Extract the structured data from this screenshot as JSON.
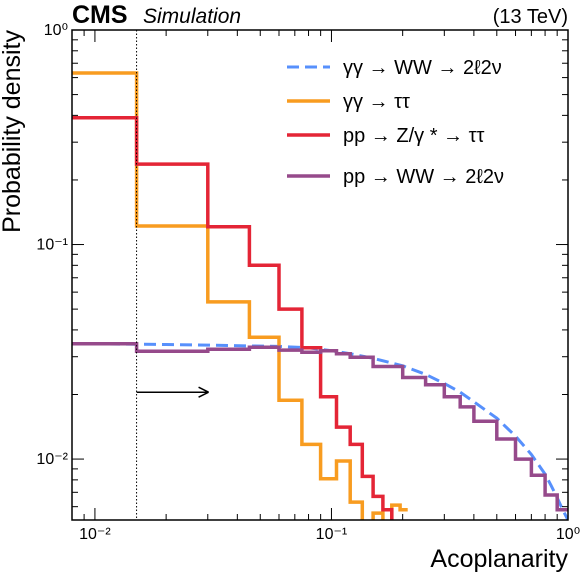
{
  "chart_data": {
    "type": "line",
    "header": {
      "experiment": "CMS",
      "status": "Simulation",
      "energy": "(13 TeV)"
    },
    "xlabel": "Acoplanarity",
    "ylabel": "Probability density",
    "x_scale": "log",
    "y_scale": "log",
    "xlim": [
      0.008,
      1.0
    ],
    "ylim": [
      0.0052,
      1.0
    ],
    "x_ticks": [
      {
        "value": 0.01,
        "label": "10⁻²"
      },
      {
        "value": 0.1,
        "label": "10⁻¹"
      },
      {
        "value": 1,
        "label": "10⁰"
      }
    ],
    "y_ticks": [
      {
        "value": 0.01,
        "label": "10⁻²"
      },
      {
        "value": 0.1,
        "label": "10⁻¹"
      },
      {
        "value": 1,
        "label": "10⁰"
      }
    ],
    "cut": {
      "value": 0.015,
      "direction": "right"
    },
    "legend_position": "top-right",
    "series": [
      {
        "name": "γγ → WW → 2ℓ2ν",
        "color": "#5790fc",
        "style": "dashed",
        "points": [
          [
            0.008,
            0.0345
          ],
          [
            0.02,
            0.0342
          ],
          [
            0.03,
            0.034
          ],
          [
            0.045,
            0.0337
          ],
          [
            0.06,
            0.0335
          ],
          [
            0.08,
            0.033
          ],
          [
            0.1,
            0.032
          ],
          [
            0.12,
            0.031
          ],
          [
            0.15,
            0.0295
          ],
          [
            0.2,
            0.0272
          ],
          [
            0.25,
            0.0248
          ],
          [
            0.3,
            0.0225
          ],
          [
            0.35,
            0.0205
          ],
          [
            0.4,
            0.0185
          ],
          [
            0.5,
            0.0155
          ],
          [
            0.6,
            0.0128
          ],
          [
            0.7,
            0.0105
          ],
          [
            0.8,
            0.0085
          ],
          [
            0.85,
            0.0075
          ],
          [
            0.9,
            0.0066
          ],
          [
            0.95,
            0.0058
          ],
          [
            1.0,
            0.0052
          ]
        ]
      },
      {
        "name": "γγ → ττ",
        "color": "#f89c20",
        "style": "solid",
        "edges": [
          0.008,
          0.015,
          0.03,
          0.045,
          0.06,
          0.075,
          0.09,
          0.105,
          0.12,
          0.135,
          0.15,
          0.165,
          0.18,
          0.195,
          0.21
        ],
        "values": [
          0.63,
          0.122,
          0.054,
          0.037,
          0.0188,
          0.0117,
          0.0081,
          0.0098,
          0.0063,
          0.0051,
          0.0056,
          0.0047,
          0.0061,
          0.0058
        ]
      },
      {
        "name": "pp → Z/γ * → ττ",
        "color": "#e42536",
        "style": "solid",
        "edges": [
          0.008,
          0.015,
          0.03,
          0.045,
          0.06,
          0.075,
          0.09,
          0.105,
          0.12,
          0.135,
          0.15,
          0.165,
          0.18,
          0.195
        ],
        "values": [
          0.39,
          0.237,
          0.121,
          0.08,
          0.05,
          0.033,
          0.0195,
          0.0141,
          0.0117,
          0.0083,
          0.0067,
          0.0058,
          0.0044
        ]
      },
      {
        "name": "pp → WW → 2ℓ2ν",
        "color": "#964a8b",
        "style": "solid",
        "edges": [
          0.008,
          0.015,
          0.03,
          0.045,
          0.06,
          0.075,
          0.09,
          0.105,
          0.12,
          0.15,
          0.2,
          0.25,
          0.3,
          0.35,
          0.4,
          0.5,
          0.6,
          0.7,
          0.8,
          0.9,
          1.0
        ],
        "values": [
          0.0345,
          0.0318,
          0.0325,
          0.0332,
          0.0322,
          0.0315,
          0.032,
          0.031,
          0.0298,
          0.027,
          0.024,
          0.0222,
          0.0195,
          0.0175,
          0.015,
          0.0124,
          0.01,
          0.0084,
          0.0068,
          0.0058
        ]
      }
    ]
  }
}
